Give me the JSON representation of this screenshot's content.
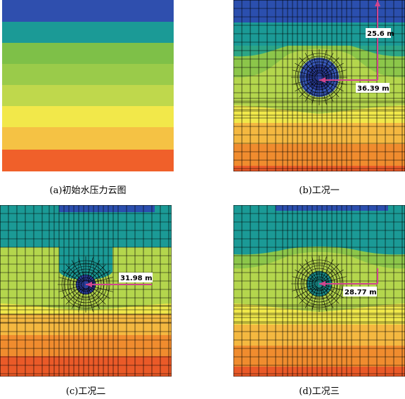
{
  "captions": {
    "a": "(a)初始水压力云图",
    "b": "(b)工况一",
    "c": "(c)工况二",
    "d": "(d)工况三"
  },
  "annotations": {
    "b_vertical": "25.6 m",
    "b_horizontal": "36.39 m",
    "c_horizontal": "31.98 m",
    "d_horizontal": "28.77 m"
  },
  "colors": {
    "band_1": "#2b4fae",
    "band_2": "#1b9a96",
    "band_3": "#3fb07a",
    "band_4": "#8cc64a",
    "band_5": "#b4d64d",
    "band_6": "#f0e84a",
    "band_7": "#f4b840",
    "band_8": "#f08c2e",
    "band_9": "#ea5a28",
    "mesh": "#000000",
    "arrow": "#d0458e"
  }
}
